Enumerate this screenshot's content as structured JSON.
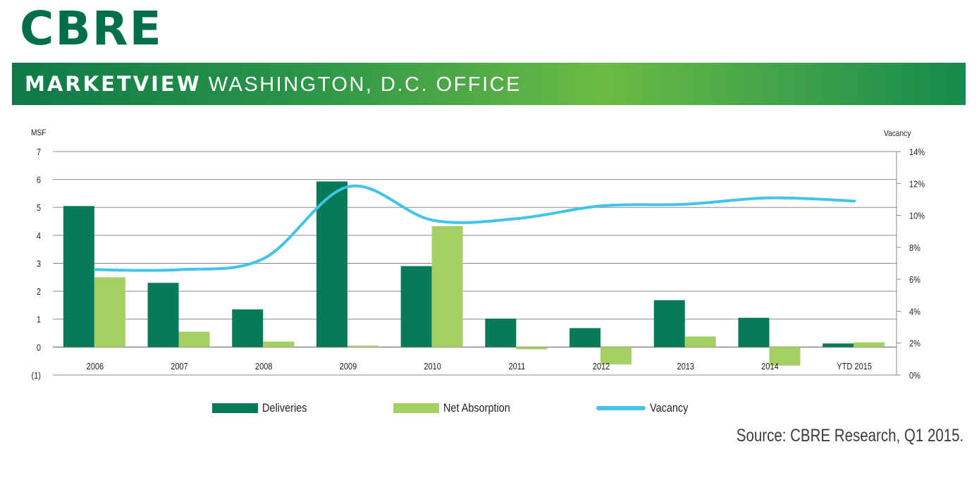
{
  "header": {
    "logo": "CBRE",
    "banner_bold": "MARKETVIEW",
    "banner_light": "WASHINGTON, D.C. OFFICE"
  },
  "colors": {
    "deliveries": "#077a57",
    "net_absorption": "#a5cf63",
    "vacancy": "#41c4e8",
    "brand": "#00704a"
  },
  "chart_data": {
    "type": "bar",
    "categories": [
      "2006",
      "2007",
      "2008",
      "2009",
      "2010",
      "2011",
      "2012",
      "2013",
      "2014",
      "YTD 2015"
    ],
    "series": [
      {
        "name": "Deliveries",
        "type": "bar",
        "axis": "left",
        "values": [
          5.05,
          2.3,
          1.35,
          5.93,
          2.9,
          1.02,
          0.68,
          1.68,
          1.05,
          0.13
        ]
      },
      {
        "name": "Net Absorption",
        "type": "bar",
        "axis": "left",
        "values": [
          2.5,
          0.55,
          0.2,
          0.05,
          4.33,
          -0.08,
          -0.62,
          0.38,
          -0.66,
          0.17
        ]
      },
      {
        "name": "Vacancy",
        "type": "line",
        "axis": "right",
        "values": [
          6.6,
          6.6,
          7.3,
          11.8,
          9.7,
          9.8,
          10.6,
          10.7,
          11.1,
          10.9
        ]
      }
    ],
    "ylabel": "MSF",
    "y2label": "Vacancy",
    "ylim": [
      -1,
      7
    ],
    "y2lim": [
      0,
      14
    ],
    "yticks": [
      "(1)",
      "0",
      "1",
      "2",
      "3",
      "4",
      "5",
      "6",
      "7"
    ],
    "y2ticks": [
      "0%",
      "2%",
      "4%",
      "6%",
      "8%",
      "10%",
      "12%",
      "14%"
    ],
    "grid": true,
    "legend_position": "bottom"
  },
  "source": "Source: CBRE Research, Q1 2015."
}
